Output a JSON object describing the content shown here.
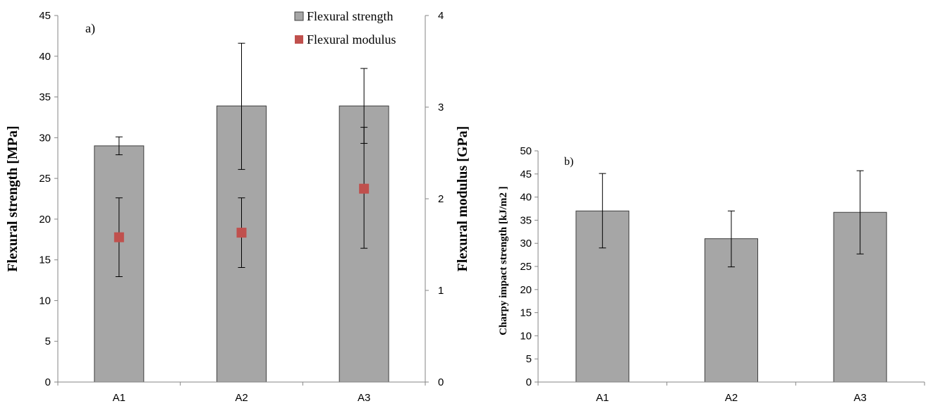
{
  "chart_data": [
    {
      "type": "bar",
      "panel_label": "a)",
      "categories": [
        "A1",
        "A2",
        "A3"
      ],
      "ylabel": "Flexural strength [MPa]",
      "ylabel_right": "Flexural modulus [GPa]",
      "ylim": [
        0,
        45
      ],
      "ylim_right": [
        0,
        4
      ],
      "yticks": [
        "0",
        "5",
        "10",
        "15",
        "20",
        "25",
        "30",
        "35",
        "40",
        "45"
      ],
      "yticks_right": [
        "0",
        "1",
        "2",
        "3",
        "4"
      ],
      "legend_position": "top-right",
      "grid": false,
      "series": [
        {
          "name": "Flexural strength",
          "kind": "bar",
          "axis": "left",
          "color": "#a6a6a6",
          "values": [
            29.0,
            33.9,
            33.9
          ],
          "error_low": [
            27.9,
            26.1,
            29.3
          ],
          "error_high": [
            30.1,
            41.6,
            38.5
          ]
        },
        {
          "name": "Flexural modulus",
          "kind": "marker",
          "axis": "right",
          "color": "#c0504d",
          "values": [
            1.58,
            1.63,
            2.11
          ],
          "error_low": [
            1.15,
            1.25,
            1.46
          ],
          "error_high": [
            2.01,
            2.01,
            2.78
          ]
        }
      ]
    },
    {
      "type": "bar",
      "panel_label": "b)",
      "categories": [
        "A1",
        "A2",
        "A3"
      ],
      "ylabel": "Charpy impact strength [kJ/m2 ]",
      "ylim": [
        0,
        50
      ],
      "yticks": [
        "0",
        "5",
        "10",
        "15",
        "20",
        "25",
        "30",
        "35",
        "40",
        "45",
        "50"
      ],
      "grid": false,
      "series": [
        {
          "kind": "bar",
          "color": "#a6a6a6",
          "values": [
            37.0,
            31.0,
            36.7
          ],
          "error_low": [
            29.0,
            24.9,
            27.7
          ],
          "error_high": [
            45.1,
            37.0,
            45.7
          ]
        }
      ]
    }
  ]
}
